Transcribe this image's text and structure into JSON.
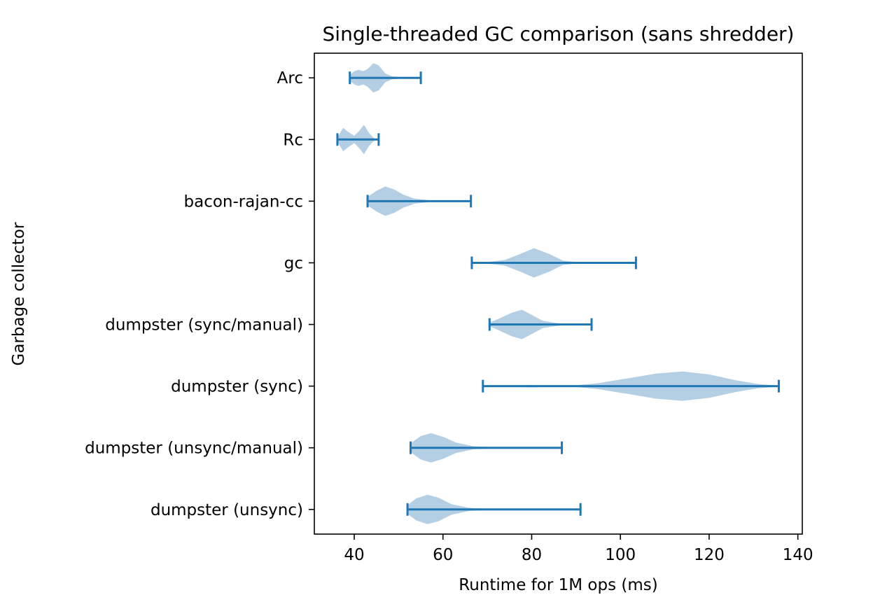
{
  "chart_data": {
    "type": "violin",
    "orientation": "horizontal",
    "title": "Single-threaded GC comparison (sans shredder)",
    "xlabel": "Runtime for 1M ops (ms)",
    "ylabel": "Garbage collector",
    "xlim": [
      31,
      141
    ],
    "xticks": [
      40,
      60,
      80,
      100,
      120,
      140
    ],
    "grid": false,
    "body_color": "#b4cfe4",
    "line_color": "#1f77b4",
    "categories": [
      {
        "label": "dumpster (unsync)",
        "min": 52,
        "max": 91,
        "profile": [
          [
            52,
            0.3
          ],
          [
            54,
            0.75
          ],
          [
            56.5,
            1.0
          ],
          [
            59,
            0.8
          ],
          [
            62,
            0.35
          ],
          [
            66,
            0.1
          ],
          [
            70,
            0.04
          ],
          [
            80,
            0.02
          ],
          [
            91,
            0.01
          ]
        ]
      },
      {
        "label": "dumpster (unsync/manual)",
        "min": 52.7,
        "max": 86.8,
        "profile": [
          [
            52.7,
            0.3
          ],
          [
            55,
            0.8
          ],
          [
            57.3,
            1.0
          ],
          [
            60,
            0.75
          ],
          [
            63,
            0.35
          ],
          [
            67,
            0.1
          ],
          [
            72,
            0.04
          ],
          [
            80,
            0.02
          ],
          [
            86.8,
            0.01
          ]
        ]
      },
      {
        "label": "dumpster (sync)",
        "min": 69,
        "max": 135.7,
        "profile": [
          [
            69,
            0.03
          ],
          [
            75,
            0.06
          ],
          [
            80,
            0.08
          ],
          [
            85,
            0.05
          ],
          [
            90,
            0.06
          ],
          [
            95,
            0.2
          ],
          [
            102,
            0.55
          ],
          [
            108,
            0.85
          ],
          [
            114,
            1.0
          ],
          [
            120,
            0.8
          ],
          [
            126,
            0.4
          ],
          [
            131,
            0.15
          ],
          [
            135.7,
            0.03
          ]
        ]
      },
      {
        "label": "dumpster (sync/manual)",
        "min": 70.5,
        "max": 93.5,
        "profile": [
          [
            70.5,
            0.12
          ],
          [
            73,
            0.45
          ],
          [
            75.5,
            0.8
          ],
          [
            77.8,
            1.0
          ],
          [
            80,
            0.65
          ],
          [
            82.5,
            0.25
          ],
          [
            86,
            0.08
          ],
          [
            90,
            0.03
          ],
          [
            93.5,
            0.01
          ]
        ]
      },
      {
        "label": "gc",
        "min": 66.5,
        "max": 103.5,
        "profile": [
          [
            66.5,
            0.02
          ],
          [
            70,
            0.05
          ],
          [
            74,
            0.2
          ],
          [
            77,
            0.55
          ],
          [
            80.5,
            1.0
          ],
          [
            84,
            0.6
          ],
          [
            87,
            0.15
          ],
          [
            90,
            0.05
          ],
          [
            96,
            0.02
          ],
          [
            103.5,
            0.01
          ]
        ]
      },
      {
        "label": "bacon-rajan-cc",
        "min": 43,
        "max": 66.3,
        "profile": [
          [
            43,
            0.3
          ],
          [
            45,
            0.7
          ],
          [
            47,
            1.0
          ],
          [
            49,
            0.8
          ],
          [
            51,
            0.45
          ],
          [
            53.5,
            0.18
          ],
          [
            57,
            0.06
          ],
          [
            61,
            0.03
          ],
          [
            66.3,
            0.01
          ]
        ]
      },
      {
        "label": "Rc",
        "min": 36.2,
        "max": 45.5,
        "profile": [
          [
            36.2,
            0.15
          ],
          [
            37.5,
            0.8
          ],
          [
            38.5,
            0.55
          ],
          [
            40,
            0.25
          ],
          [
            41,
            0.55
          ],
          [
            42.2,
            1.0
          ],
          [
            43.3,
            0.45
          ],
          [
            44.5,
            0.08
          ],
          [
            45.5,
            0.02
          ]
        ]
      },
      {
        "label": "Arc",
        "min": 39,
        "max": 55,
        "profile": [
          [
            39,
            0.2
          ],
          [
            40,
            0.45
          ],
          [
            41,
            0.55
          ],
          [
            42,
            0.45
          ],
          [
            43,
            0.6
          ],
          [
            44.3,
            1.0
          ],
          [
            45.5,
            0.85
          ],
          [
            47,
            0.3
          ],
          [
            48.5,
            0.1
          ],
          [
            51,
            0.04
          ],
          [
            55,
            0.01
          ]
        ]
      }
    ]
  }
}
